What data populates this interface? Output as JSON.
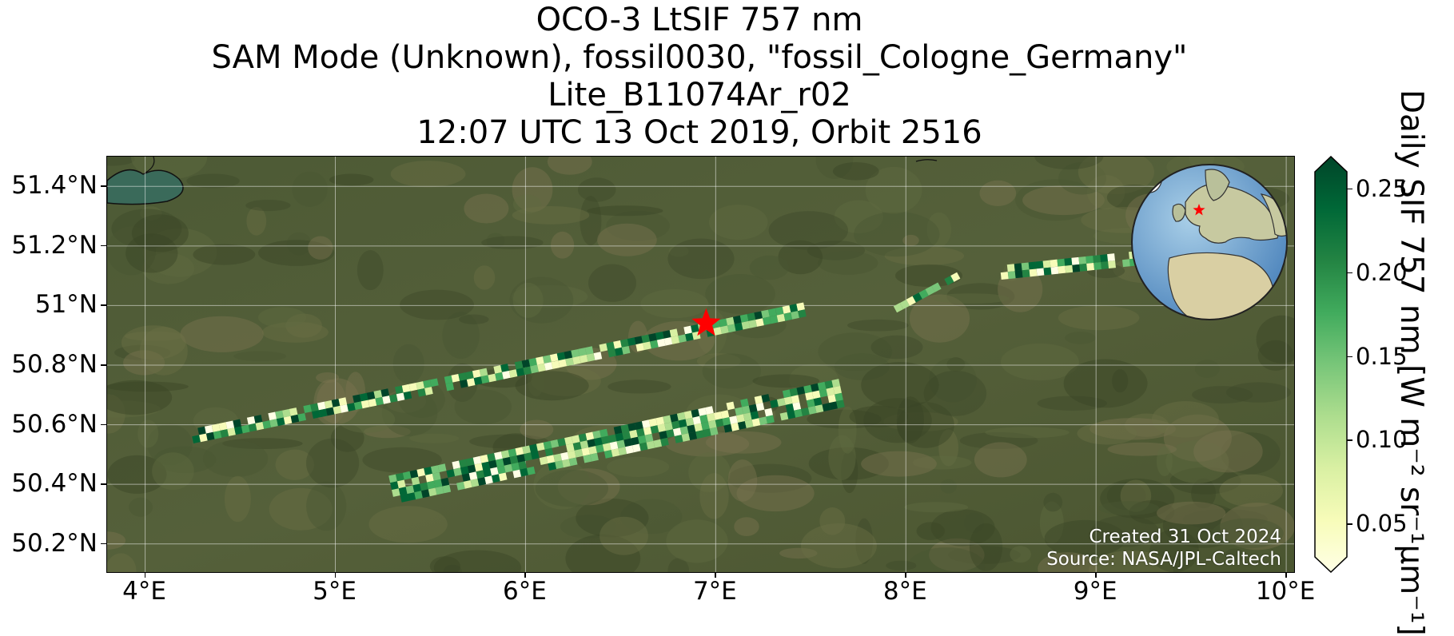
{
  "title": {
    "line1": "OCO-3 LtSIF 757 nm",
    "line2": "SAM Mode (Unknown), fossil0030, \"fossil_Cologne_Germany\"",
    "line3": "Lite_B11074Ar_r02",
    "line4": "12:07 UTC 13 Oct 2019, Orbit 2516"
  },
  "map": {
    "lon_range": [
      3.8,
      10.05
    ],
    "lat_range": [
      50.1,
      51.5
    ],
    "grid": true,
    "basemap": "satellite imagery",
    "target_marker": {
      "name": "fossil_Cologne_Germany",
      "lon": 6.95,
      "lat": 50.94,
      "color": "#ff0000",
      "icon": "star-icon"
    },
    "lat_ticks": [
      "51.4°N",
      "51.2°N",
      "51°N",
      "50.8°N",
      "50.6°N",
      "50.4°N",
      "50.2°N"
    ],
    "lat_tick_values": [
      51.4,
      51.2,
      51.0,
      50.8,
      50.6,
      50.4,
      50.2
    ],
    "lon_ticks": [
      "4°E",
      "5°E",
      "6°E",
      "7°E",
      "8°E",
      "9°E",
      "10°E"
    ],
    "lon_tick_values": [
      4,
      5,
      6,
      7,
      8,
      9,
      10
    ],
    "credit_created": "Created 31 Oct 2024",
    "credit_source": "Source: NASA/JPL-Caltech",
    "inset": {
      "type": "globe",
      "marker_icon": "star-icon",
      "marker_color": "#ff0000"
    }
  },
  "colorbar": {
    "label": "Daily SIF 757 nm [W m⁻² sr⁻¹μm⁻¹]",
    "range": [
      0.03,
      0.26
    ],
    "ticks": [
      "0.25",
      "0.20",
      "0.15",
      "0.10",
      "0.05"
    ],
    "tick_values": [
      0.25,
      0.2,
      0.15,
      0.1,
      0.05
    ],
    "colormap": "YlGn",
    "extend": "both"
  },
  "swaths": [
    {
      "lon_from": 4.25,
      "lat_from": 50.55,
      "lon_to": 7.5,
      "lat_to": 50.98,
      "half_width": 0.035
    },
    {
      "lon_from": 5.3,
      "lat_from": 50.37,
      "lon_to": 7.7,
      "lat_to": 50.7,
      "half_width": 0.06
    },
    {
      "lon_from": 8.5,
      "lat_from": 51.1,
      "lon_to": 9.25,
      "lat_to": 51.15,
      "half_width": 0.035
    },
    {
      "lon_from": 7.95,
      "lat_from": 50.98,
      "lon_to": 8.3,
      "lat_to": 51.1,
      "half_width": 0.02
    }
  ]
}
